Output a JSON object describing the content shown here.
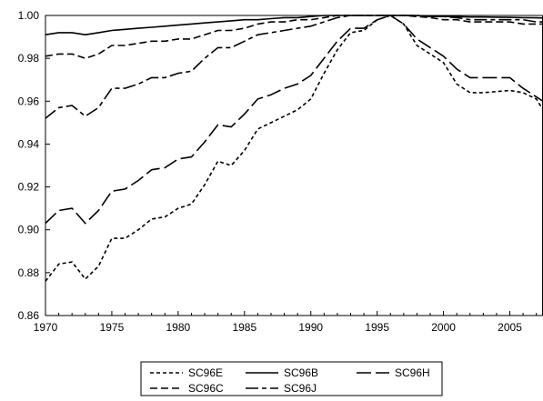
{
  "chart_data": {
    "type": "line",
    "title": "",
    "xlabel": "",
    "ylabel": "",
    "xlim": [
      1970,
      2007.5
    ],
    "ylim": [
      0.86,
      1.0
    ],
    "x_ticks": [
      1970,
      1975,
      1980,
      1985,
      1990,
      1995,
      2000,
      2005
    ],
    "x_tick_labels": [
      "1970",
      "1975",
      "1980",
      "1985",
      "1990",
      "1995",
      "2000",
      "2005"
    ],
    "y_ticks": [
      0.86,
      0.88,
      0.9,
      0.92,
      0.94,
      0.96,
      0.98,
      1.0
    ],
    "y_tick_labels": [
      "0.86",
      "0.88",
      "0.90",
      "0.92",
      "0.94",
      "0.96",
      "0.98",
      "1.00"
    ],
    "grid": false,
    "legend_position": "bottom",
    "x": [
      1970,
      1971,
      1972,
      1973,
      1974,
      1975,
      1976,
      1977,
      1978,
      1979,
      1980,
      1981,
      1982,
      1983,
      1984,
      1985,
      1986,
      1987,
      1988,
      1989,
      1990,
      1991,
      1992,
      1993,
      1994,
      1995,
      1996,
      1997,
      1998,
      1999,
      2000,
      2001,
      2002,
      2003,
      2004,
      2005,
      2006,
      2007,
      2007.5
    ],
    "series": [
      {
        "name": "SC96E",
        "dash": "short",
        "values": [
          0.876,
          0.884,
          0.885,
          0.877,
          0.883,
          0.896,
          0.896,
          0.9,
          0.905,
          0.906,
          0.91,
          0.912,
          0.921,
          0.932,
          0.93,
          0.937,
          0.947,
          0.95,
          0.953,
          0.956,
          0.961,
          0.973,
          0.984,
          0.992,
          0.993,
          0.998,
          1.0,
          0.996,
          0.986,
          0.982,
          0.978,
          0.968,
          0.964,
          0.964,
          0.9645,
          0.965,
          0.964,
          0.961,
          0.956
        ]
      },
      {
        "name": "SC96B",
        "dash": "solid",
        "values": [
          0.991,
          0.992,
          0.992,
          0.991,
          0.992,
          0.993,
          0.9935,
          0.994,
          0.9945,
          0.995,
          0.9955,
          0.996,
          0.9965,
          0.997,
          0.9975,
          0.998,
          0.998,
          0.9985,
          0.999,
          0.999,
          0.9995,
          1.0,
          1.0,
          1.0,
          1.0,
          1.0,
          1.0,
          1.0,
          1.0,
          0.9995,
          0.9995,
          0.9995,
          0.9993,
          0.9993,
          0.9992,
          0.9991,
          0.999,
          0.9989,
          0.9988
        ]
      },
      {
        "name": "SC96H",
        "dash": "long",
        "values": [
          0.903,
          0.909,
          0.91,
          0.903,
          0.909,
          0.918,
          0.919,
          0.923,
          0.928,
          0.929,
          0.933,
          0.934,
          0.941,
          0.949,
          0.948,
          0.954,
          0.961,
          0.963,
          0.966,
          0.968,
          0.972,
          0.98,
          0.988,
          0.994,
          0.994,
          0.998,
          1.0,
          0.996,
          0.989,
          0.985,
          0.981,
          0.975,
          0.971,
          0.971,
          0.971,
          0.971,
          0.966,
          0.962,
          0.96
        ]
      },
      {
        "name": "SC96C",
        "dash": "medium",
        "values": [
          0.981,
          0.982,
          0.982,
          0.98,
          0.982,
          0.986,
          0.986,
          0.987,
          0.988,
          0.988,
          0.989,
          0.989,
          0.991,
          0.993,
          0.993,
          0.994,
          0.996,
          0.997,
          0.997,
          0.998,
          0.998,
          0.999,
          1.0,
          1.0,
          1.0,
          1.0,
          1.0,
          1.0,
          0.9995,
          0.999,
          0.998,
          0.998,
          0.997,
          0.997,
          0.997,
          0.997,
          0.996,
          0.996,
          0.996
        ]
      },
      {
        "name": "SC96J",
        "dash": "longshort",
        "values": [
          0.952,
          0.957,
          0.958,
          0.953,
          0.957,
          0.966,
          0.966,
          0.968,
          0.971,
          0.971,
          0.973,
          0.974,
          0.98,
          0.985,
          0.985,
          0.988,
          0.991,
          0.992,
          0.993,
          0.994,
          0.995,
          0.997,
          0.999,
          1.0,
          1.0,
          1.0,
          1.0,
          1.0,
          1.0,
          0.9995,
          0.9995,
          0.999,
          0.998,
          0.998,
          0.998,
          0.998,
          0.998,
          0.997,
          0.997
        ]
      }
    ],
    "legend_rows": [
      [
        "SC96E",
        "SC96B",
        "SC96H"
      ],
      [
        "SC96C",
        "SC96J"
      ]
    ]
  }
}
